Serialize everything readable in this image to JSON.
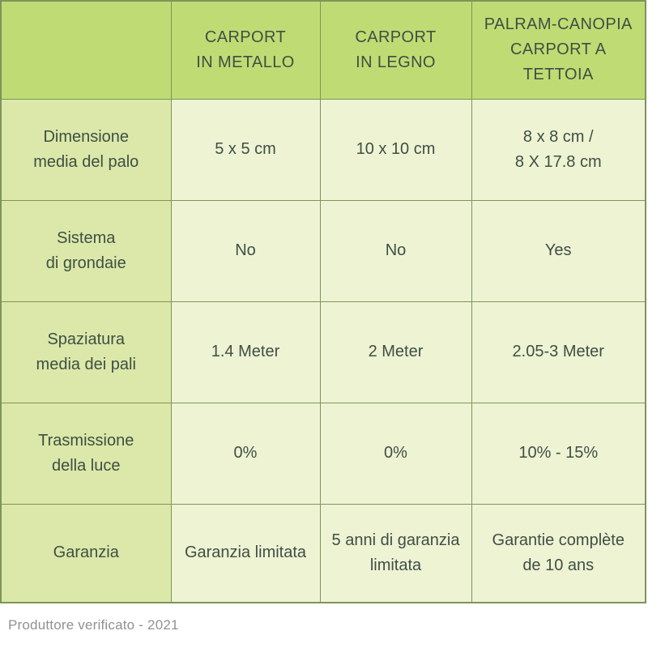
{
  "colors": {
    "header_bg": "#bedc73",
    "label_bg": "#dbe8a9",
    "cell_bg": "#eef3d4",
    "border": "#7f9459",
    "text": "#3f4f44",
    "footer_text": "#919191"
  },
  "table": {
    "columns": [
      "CARPORT\nIN METALLO",
      "CARPORT\nIN LEGNO",
      "PALRAM-CANOPIA\nCARPORT A TETTOIA"
    ],
    "rows": [
      {
        "label": "Dimensione\nmedia del palo",
        "values": [
          "5 x 5 cm",
          "10 x 10 cm",
          "8 x 8 cm /\n8 X 17.8 cm"
        ]
      },
      {
        "label": "Sistema\ndi grondaie",
        "values": [
          "No",
          "No",
          "Yes"
        ]
      },
      {
        "label": "Spaziatura\nmedia dei pali",
        "values": [
          "1.4 Meter",
          "2 Meter",
          "2.05-3 Meter"
        ]
      },
      {
        "label": "Trasmissione\ndella luce",
        "values": [
          "0%",
          "0%",
          "10% - 15%"
        ]
      },
      {
        "label": "Garanzia",
        "values": [
          "Garanzia limitata",
          "5 anni di garanzia\nlimitata",
          "Garantie complète\nde 10 ans"
        ]
      }
    ]
  },
  "footer": {
    "note": "Produttore verificato - 2021"
  },
  "chart_data": {
    "type": "table",
    "title": "",
    "columns": [
      "",
      "CARPORT IN METALLO",
      "CARPORT IN LEGNO",
      "PALRAM-CANOPIA CARPORT A TETTOIA"
    ],
    "rows": [
      [
        "Dimensione media del palo",
        "5 x 5 cm",
        "10 x 10 cm",
        "8 x 8 cm / 8 X 17.8 cm"
      ],
      [
        "Sistema di grondaie",
        "No",
        "No",
        "Yes"
      ],
      [
        "Spaziatura media dei pali",
        "1.4 Meter",
        "2 Meter",
        "2.05-3 Meter"
      ],
      [
        "Trasmissione della luce",
        "0%",
        "0%",
        "10% - 15%"
      ],
      [
        "Garanzia",
        "Garanzia limitata",
        "5 anni di garanzia limitata",
        "Garantie complète de 10 ans"
      ]
    ],
    "footnote": "Produttore verificato - 2021"
  }
}
